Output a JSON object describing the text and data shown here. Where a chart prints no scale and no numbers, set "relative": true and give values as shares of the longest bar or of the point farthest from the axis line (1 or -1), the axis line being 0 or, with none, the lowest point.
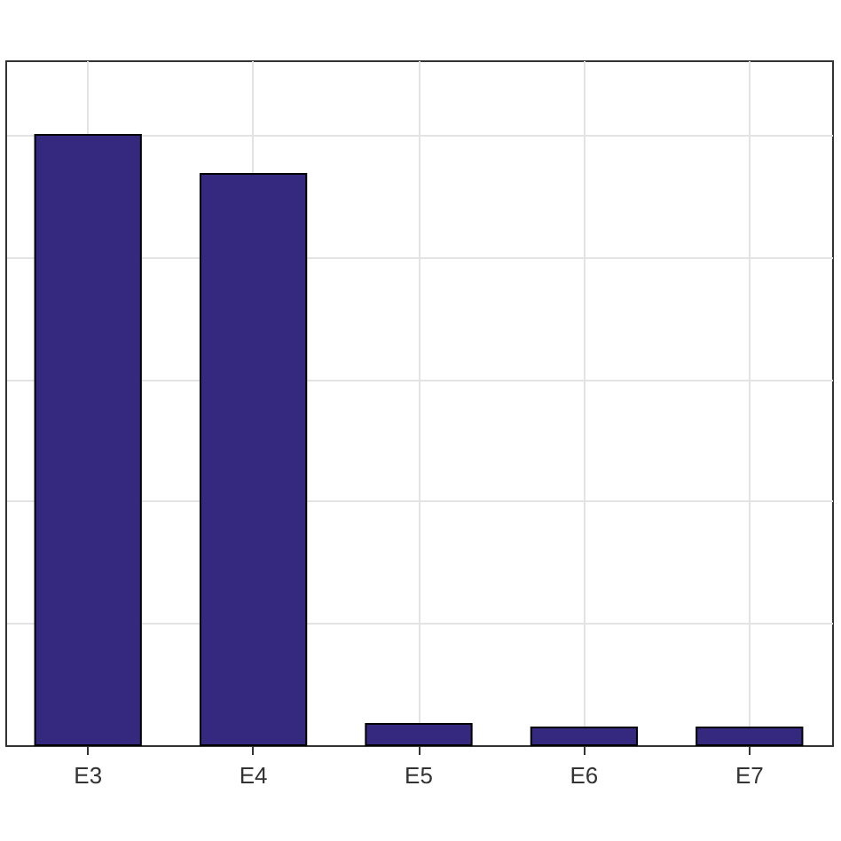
{
  "chart_data": {
    "type": "bar",
    "categories": [
      "E3",
      "E4",
      "E5",
      "E6",
      "E7"
    ],
    "values": [
      1,
      0.936,
      0.035,
      0.029,
      0.029
    ],
    "color": "#35297f",
    "relative": true,
    "grid": true
  }
}
